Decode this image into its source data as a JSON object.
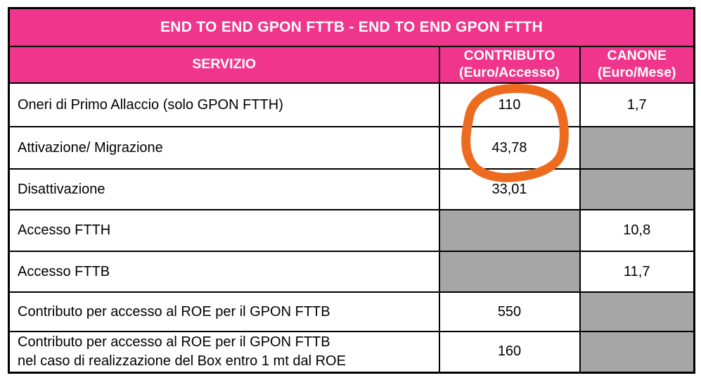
{
  "colors": {
    "pink": "#F0368C",
    "gray": "#A6A6A6",
    "orange": "#ED6B1E",
    "border": "#000000",
    "header_text": "#FFFFFF",
    "body_text": "#000000"
  },
  "table": {
    "title": "END TO END GPON FTTB - END TO END GPON FTTH",
    "columns": [
      {
        "label": "SERVIZIO",
        "sublabel": ""
      },
      {
        "label": "CONTRIBUTO",
        "sublabel": "(Euro/Accesso)"
      },
      {
        "label": "CANONE",
        "sublabel": "(Euro/Mese)"
      }
    ],
    "rows": [
      {
        "servizio": "Oneri di Primo Allaccio (solo GPON FTTH)",
        "contributo": {
          "value": "110",
          "gray": false
        },
        "canone": {
          "value": "1,7",
          "gray": false
        }
      },
      {
        "servizio": "Attivazione/ Migrazione",
        "contributo": {
          "value": "43,78",
          "gray": false
        },
        "canone": {
          "value": "",
          "gray": true
        }
      },
      {
        "servizio": "Disattivazione",
        "contributo": {
          "value": "33,01",
          "gray": false
        },
        "canone": {
          "value": "",
          "gray": true
        }
      },
      {
        "servizio": "Accesso FTTH",
        "contributo": {
          "value": "",
          "gray": true
        },
        "canone": {
          "value": "10,8",
          "gray": false
        }
      },
      {
        "servizio": "Accesso FTTB",
        "contributo": {
          "value": "",
          "gray": true
        },
        "canone": {
          "value": "11,7",
          "gray": false
        }
      },
      {
        "servizio": "Contributo per accesso al ROE per il GPON FTTB",
        "contributo": {
          "value": "550",
          "gray": false
        },
        "canone": {
          "value": "",
          "gray": true
        }
      },
      {
        "servizio": "Contributo per accesso al ROE per il GPON FTTB\nnel caso di realizzazione del Box entro 1 mt dal ROE",
        "contributo": {
          "value": "160",
          "gray": false
        },
        "canone": {
          "value": "",
          "gray": true
        }
      }
    ]
  },
  "annotation": {
    "type": "hand-drawn-circle",
    "highlighted_values": [
      "110",
      "43,78"
    ],
    "color": "#ED6B1E"
  }
}
